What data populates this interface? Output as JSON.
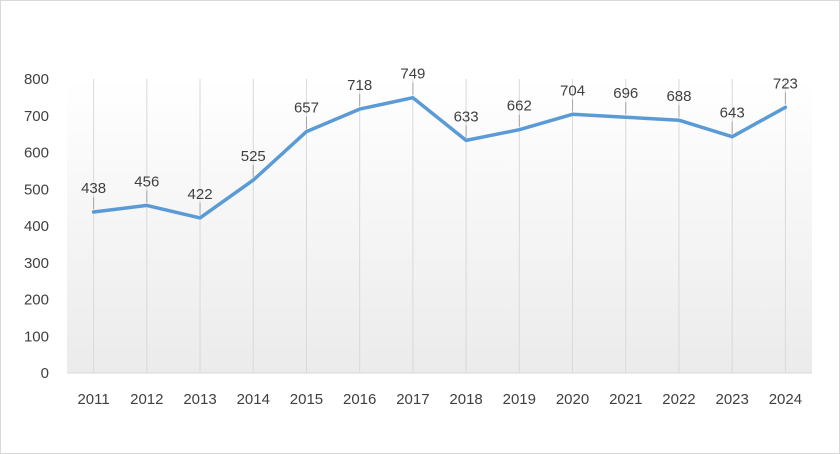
{
  "chart_data": {
    "type": "line",
    "title": "",
    "xlabel": "",
    "ylabel": "",
    "categories": [
      "2011",
      "2012",
      "2013",
      "2014",
      "2015",
      "2016",
      "2017",
      "2018",
      "2019",
      "2020",
      "2021",
      "2022",
      "2023",
      "2024"
    ],
    "series": [
      {
        "values": [
          438,
          456,
          422,
          525,
          657,
          718,
          749,
          633,
          662,
          704,
          696,
          688,
          643,
          723
        ]
      }
    ],
    "ylim": [
      0,
      800
    ],
    "yticks": [
      0,
      100,
      200,
      300,
      400,
      500,
      600,
      700,
      800
    ],
    "grid": "vertical gridlines at categories",
    "legend": "none",
    "data_labels": true,
    "colors": {
      "line": "#5b9bd5",
      "grid": "#d9d9d9",
      "text": "#404040",
      "plot_gradient_top": "#ffffff",
      "plot_gradient_bottom": "#ececec"
    }
  }
}
